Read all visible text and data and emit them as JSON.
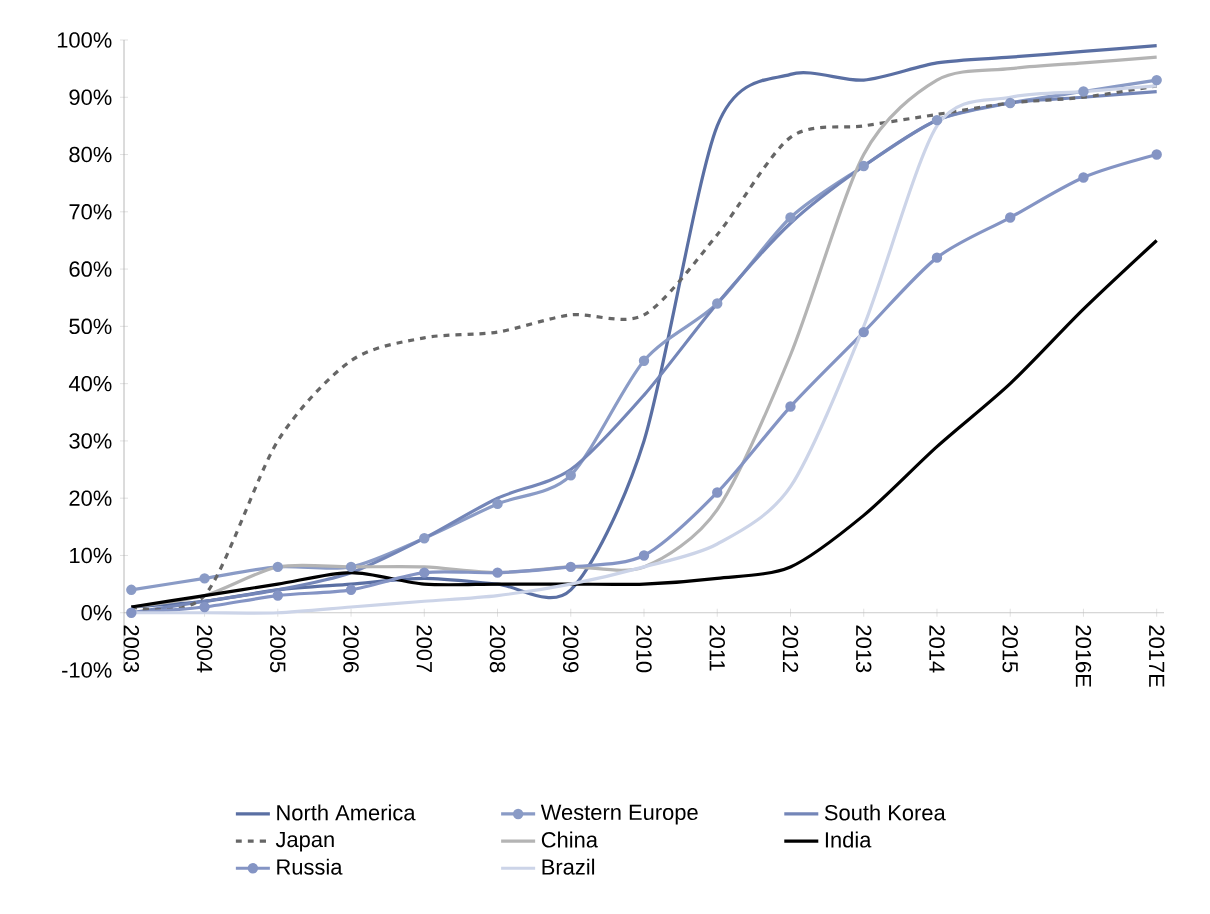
{
  "chart_data": {
    "type": "line",
    "categories": [
      "2003",
      "2004",
      "2005",
      "2006",
      "2007",
      "2008",
      "2009",
      "2010",
      "2011",
      "2012",
      "2013",
      "2014",
      "2015",
      "2016E",
      "2017E"
    ],
    "ylim": [
      -10,
      100
    ],
    "yticks": [
      {
        "value": -10,
        "label": "-10%"
      },
      {
        "value": 0,
        "label": "0%"
      },
      {
        "value": 10,
        "label": "10%"
      },
      {
        "value": 20,
        "label": "20%"
      },
      {
        "value": 30,
        "label": "30%"
      },
      {
        "value": 40,
        "label": "40%"
      },
      {
        "value": 50,
        "label": "50%"
      },
      {
        "value": 60,
        "label": "60%"
      },
      {
        "value": 70,
        "label": "70%"
      },
      {
        "value": 80,
        "label": "80%"
      },
      {
        "value": 90,
        "label": "90%"
      },
      {
        "value": 100,
        "label": "100%"
      }
    ],
    "legend": "bottom",
    "series": [
      {
        "name": "North America",
        "color": "#5a6fa3",
        "values": [
          1,
          2,
          4,
          5,
          6,
          5,
          4,
          30,
          85,
          94,
          93,
          96,
          97,
          98,
          99
        ]
      },
      {
        "name": "Western Europe",
        "color": "#8a9bc6",
        "marker": "circle",
        "values": [
          4,
          6,
          8,
          8,
          13,
          19,
          24,
          44,
          54,
          69,
          78,
          86,
          89,
          91,
          93
        ]
      },
      {
        "name": "South Korea",
        "color": "#7486b8",
        "values": [
          0,
          2,
          4,
          7,
          13,
          20,
          25,
          38,
          54,
          68,
          78,
          86,
          89,
          90,
          91
        ]
      },
      {
        "name": "Japan",
        "color": "#666666",
        "line_style": "dashed",
        "values": [
          1,
          3,
          30,
          44,
          48,
          49,
          52,
          52,
          66,
          83,
          85,
          87,
          89,
          90,
          92
        ]
      },
      {
        "name": "China",
        "color": "#b4b4b4",
        "values": [
          1,
          3,
          8,
          8,
          8,
          7,
          8,
          8,
          18,
          45,
          80,
          93,
          95,
          96,
          97
        ]
      },
      {
        "name": "India",
        "color": "#000000",
        "values": [
          1,
          3,
          5,
          7,
          5,
          5,
          5,
          5,
          6,
          8,
          17,
          29,
          40,
          53,
          65
        ]
      },
      {
        "name": "Russia",
        "color": "#8494c4",
        "marker": "circle",
        "values": [
          0,
          1,
          3,
          4,
          7,
          7,
          8,
          10,
          21,
          36,
          49,
          62,
          69,
          76,
          80
        ]
      },
      {
        "name": "Brazil",
        "color": "#ccd4e8",
        "values": [
          0,
          0,
          0,
          1,
          2,
          3,
          5,
          8,
          12,
          22,
          50,
          85,
          90,
          91,
          92
        ]
      }
    ]
  }
}
